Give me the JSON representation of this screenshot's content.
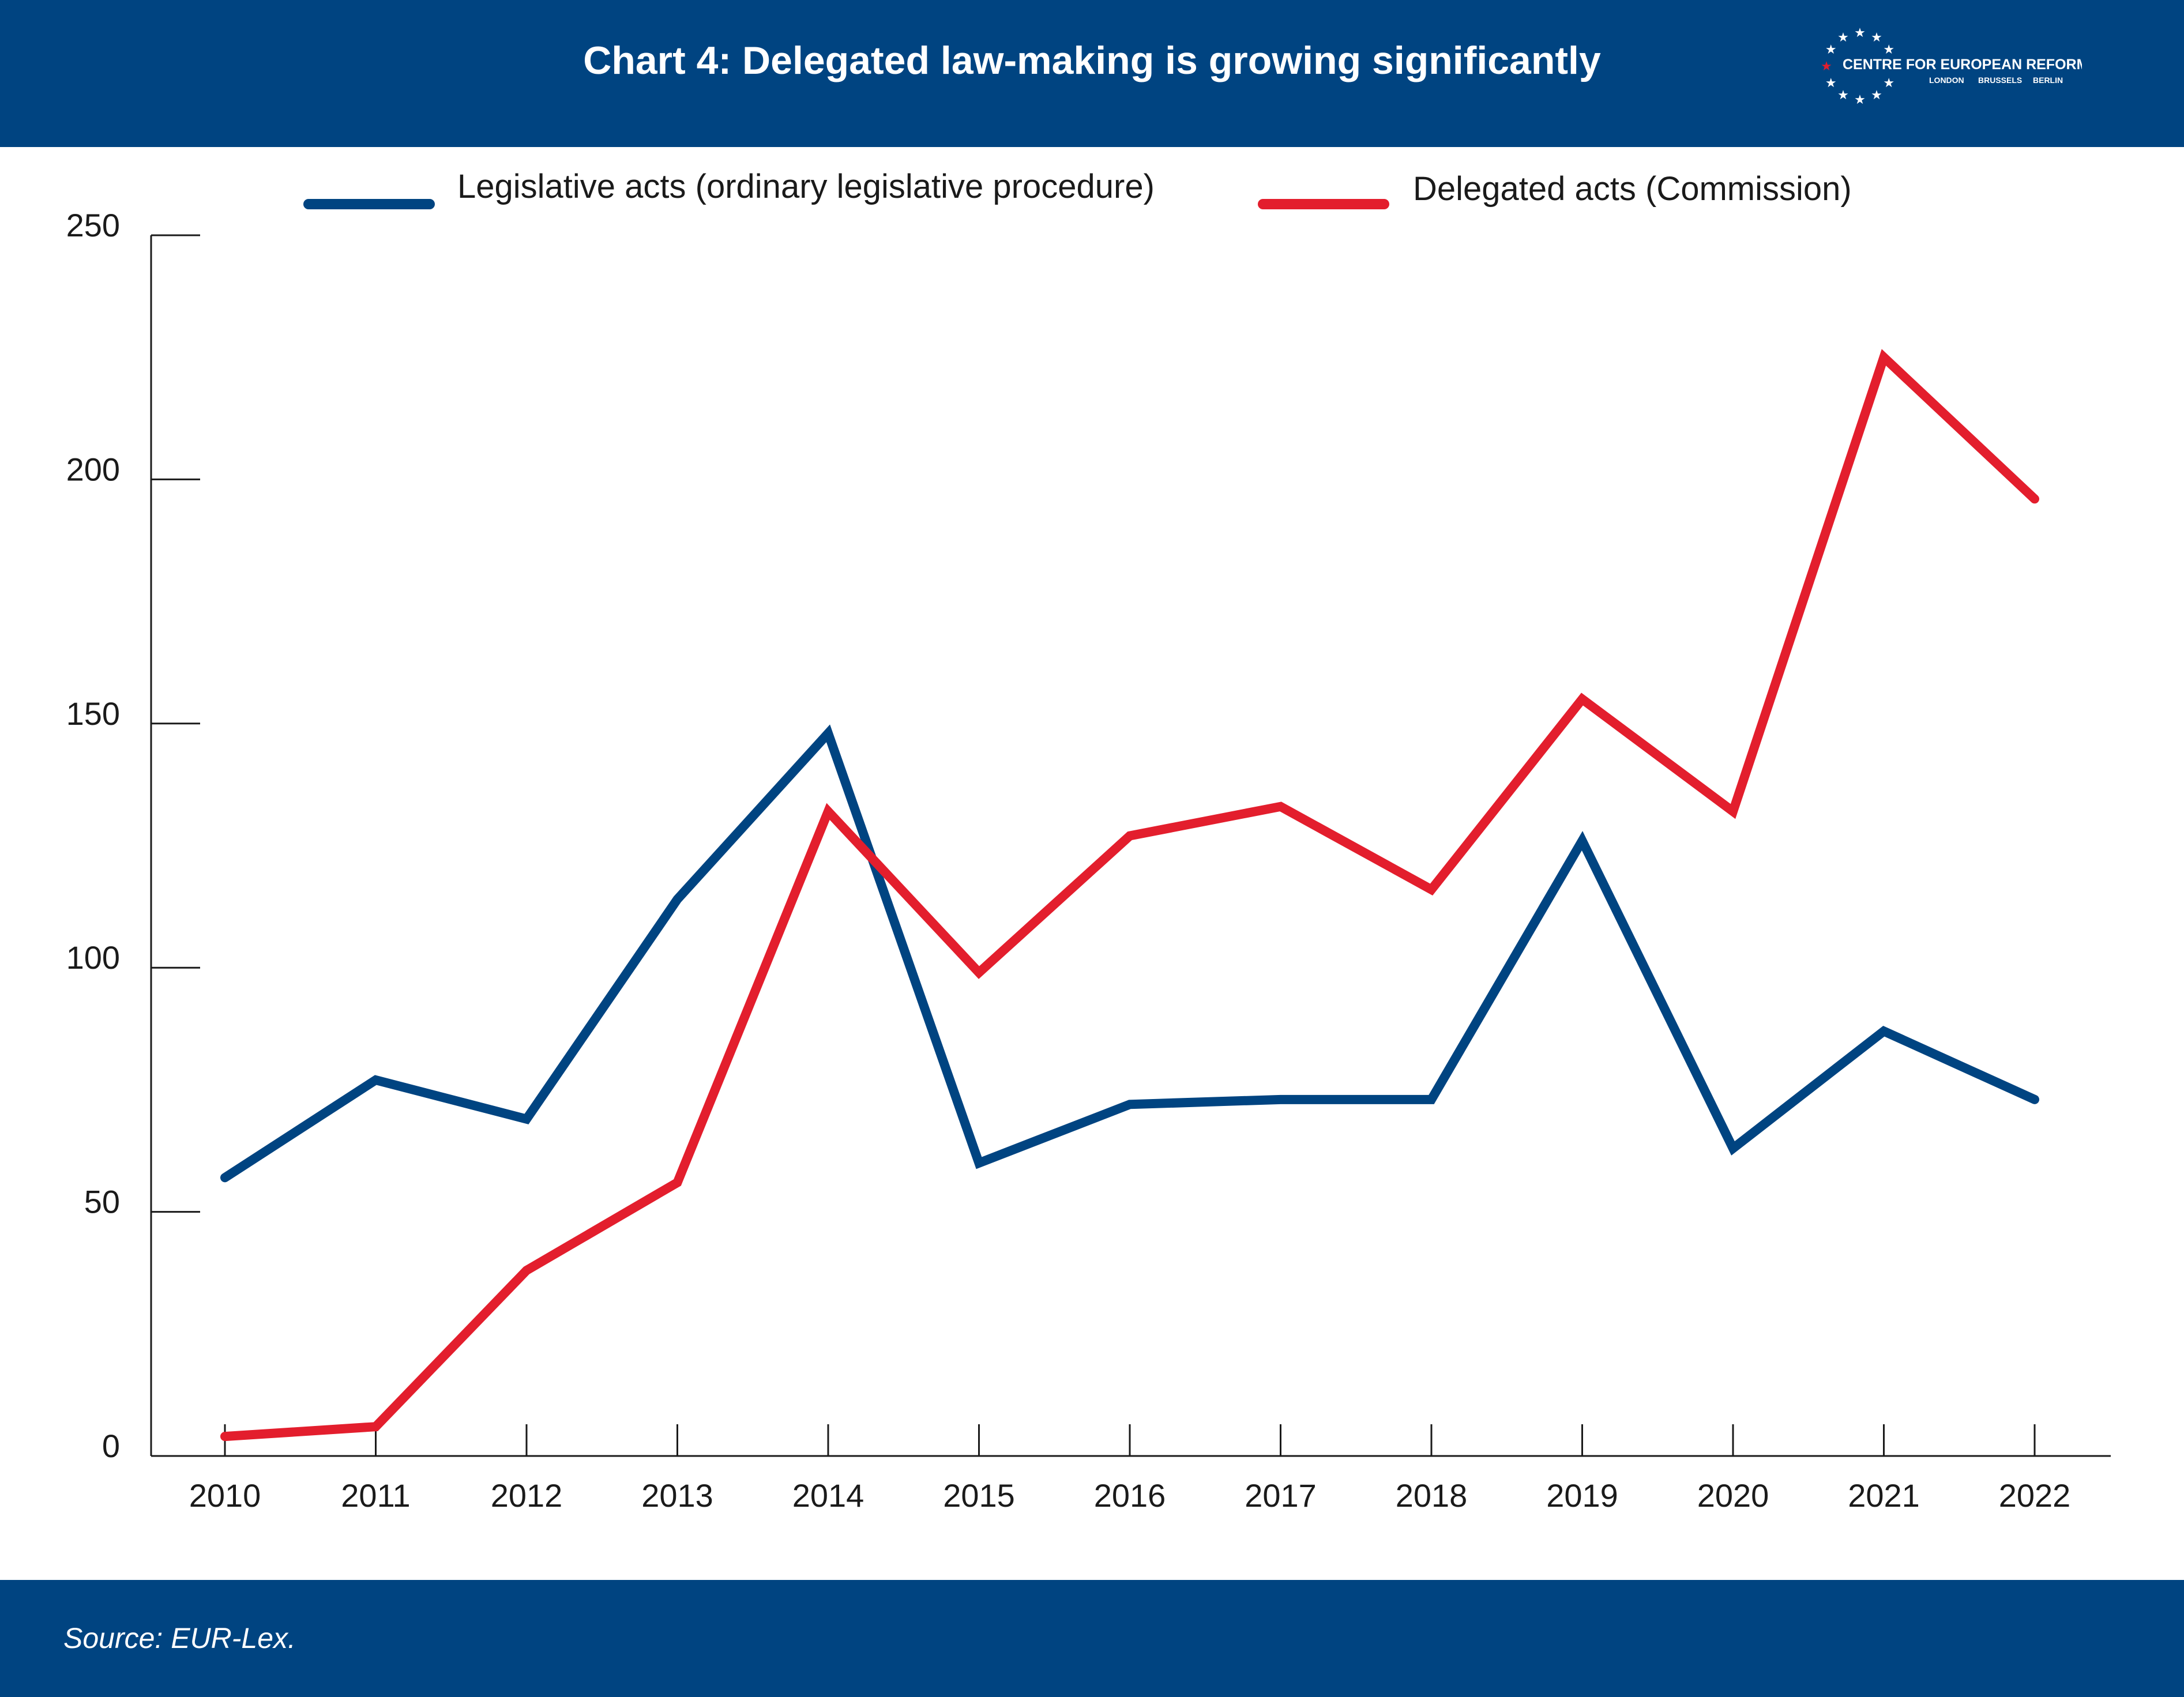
{
  "header": {
    "title": "Chart 4: Delegated law-making is growing significantly",
    "logo": {
      "name": "CENTRE FOR EUROPEAN REFORM",
      "cities": [
        "LONDON",
        "BRUSSELS",
        "BERLIN"
      ]
    }
  },
  "footer": {
    "source": "Source: EUR-Lex."
  },
  "colors": {
    "brand_blue": "#004481",
    "series_blue": "#004481",
    "series_red": "#e31e2d",
    "star_red": "#e31e2d"
  },
  "chart_data": {
    "type": "line",
    "title": "Chart 4: Delegated law-making is growing significantly",
    "xlabel": "",
    "ylabel": "",
    "ylim": [
      0,
      250
    ],
    "yticks": [
      0,
      50,
      100,
      150,
      200,
      250
    ],
    "categories": [
      "2010",
      "2011",
      "2012",
      "2013",
      "2014",
      "2015",
      "2016",
      "2017",
      "2018",
      "2019",
      "2020",
      "2021",
      "2022"
    ],
    "legend_position": "top",
    "grid": false,
    "series": [
      {
        "name": "Legislative acts (ordinary legislative procedure)",
        "color": "#004481",
        "values": [
          57,
          77,
          69,
          114,
          148,
          60,
          72,
          73,
          73,
          126,
          63,
          87,
          73
        ]
      },
      {
        "name": "Delegated acts (Commission)",
        "color": "#e31e2d",
        "values": [
          4,
          6,
          38,
          56,
          132,
          99,
          127,
          133,
          116,
          155,
          132,
          225,
          196
        ]
      }
    ]
  }
}
